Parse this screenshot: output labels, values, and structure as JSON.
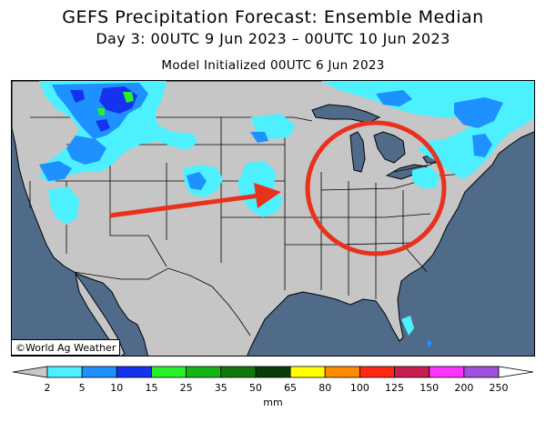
{
  "header": {
    "title": "GEFS Precipitation Forecast: Ensemble Median",
    "valid_period": "Day 3: 00UTC 9 Jun 2023 – 00UTC 10 Jun 2023",
    "init_time": "Model Initialized 00UTC 6 Jun 2023"
  },
  "map": {
    "credit": "©World Ag Weather",
    "ocean_color": "#4f6b89",
    "land_color": "#c6c6c6",
    "annotation_arrow_color": "#e8321e",
    "annotation_circle_color": "#e8321e"
  },
  "legend": {
    "unit": "mm",
    "left_cap_color": "#c8c8c8",
    "right_cap_color": "#ffffff",
    "bins": [
      {
        "color": "#4df0ff"
      },
      {
        "color": "#1e90ff"
      },
      {
        "color": "#1432f0"
      },
      {
        "color": "#28f028"
      },
      {
        "color": "#14b414"
      },
      {
        "color": "#0f780f"
      },
      {
        "color": "#0a3c0a"
      },
      {
        "color": "#ffff00"
      },
      {
        "color": "#ff8c00"
      },
      {
        "color": "#ff2814"
      },
      {
        "color": "#c81e50"
      },
      {
        "color": "#ff32ff"
      },
      {
        "color": "#a050dc"
      }
    ],
    "ticks": [
      "2",
      "5",
      "10",
      "15",
      "25",
      "35",
      "50",
      "65",
      "80",
      "100",
      "125",
      "150",
      "200",
      "250"
    ]
  }
}
